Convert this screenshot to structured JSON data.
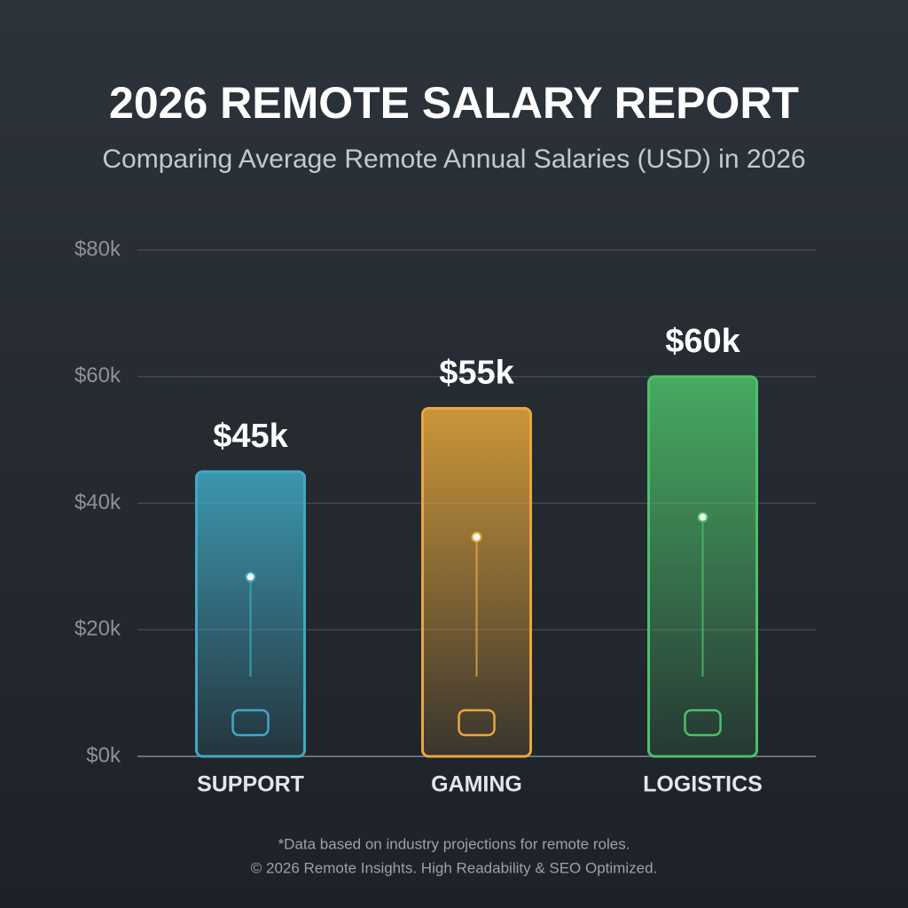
{
  "chart_data": {
    "type": "bar",
    "title": "2026 REMOTE SALARY REPORT",
    "subtitle": "Comparing Average Remote Annual Salaries (USD) in 2026",
    "categories": [
      "SUPPORT",
      "GAMING",
      "LOGISTICS"
    ],
    "values": [
      45000,
      55000,
      60000
    ],
    "value_labels": [
      "$45k",
      "$55k",
      "$60k"
    ],
    "colors": [
      "#3fa9c4",
      "#e8a83a",
      "#4cc06a"
    ],
    "ylim": [
      0,
      80000
    ],
    "yticks": [
      {
        "value": 0,
        "label": "$0k"
      },
      {
        "value": 20000,
        "label": "$20k"
      },
      {
        "value": 40000,
        "label": "$40k"
      },
      {
        "value": 60000,
        "label": "$60k"
      },
      {
        "value": 80000,
        "label": "$80k"
      }
    ],
    "grid": true,
    "notes": [
      "*Data based on industry projections for remote roles.",
      "© 2026 Remote Insights. High Readability & SEO Optimized."
    ]
  }
}
